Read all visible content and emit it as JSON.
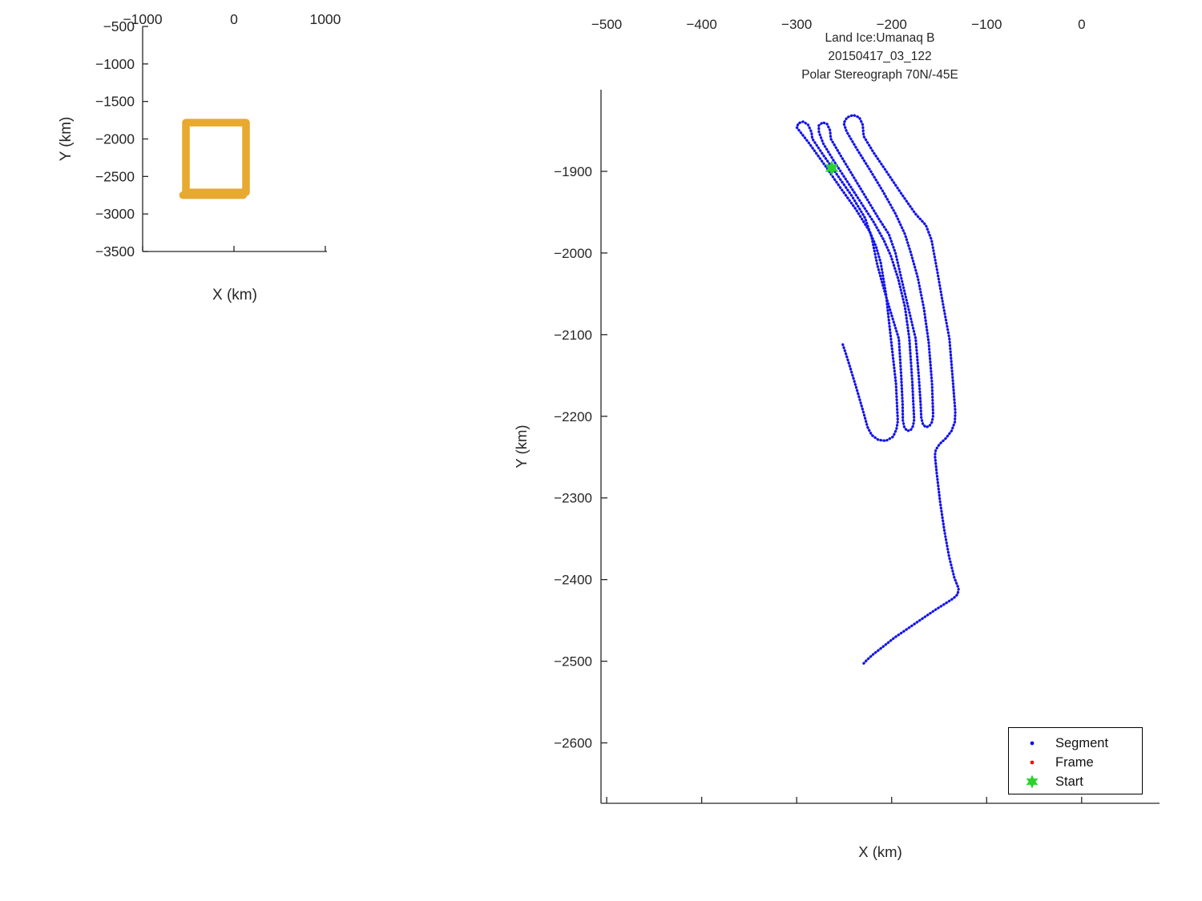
{
  "figure": {
    "background": "#FFFFFF",
    "axis_color": "#262626",
    "title_lines": [
      "Land Ice:Umanaq B",
      "20150417_03_122",
      "Polar Stereograph 70N/-45E"
    ]
  },
  "legend": {
    "position": "bottom-right",
    "items": [
      {
        "label": "Segment",
        "marker": "dot",
        "color": "#1212EE"
      },
      {
        "label": "Frame",
        "marker": "dot",
        "color": "#EE1111"
      },
      {
        "label": "Start",
        "marker": "hexagram",
        "color": "#2BD22B"
      }
    ]
  },
  "chart_data": [
    {
      "id": "overview",
      "type": "line",
      "title": "",
      "xlabel": "X (km)",
      "ylabel": "Y (km)",
      "xlim": [
        -1000,
        1018
      ],
      "ylim": [
        -3500,
        -500
      ],
      "xticks": [
        -1000,
        0,
        1000
      ],
      "yticks": [
        -500,
        -1000,
        -1500,
        -2000,
        -2500,
        -3000,
        -3500
      ],
      "grid": false,
      "series": [
        {
          "name": "coverage-box",
          "color": "#E7A92F",
          "render": "thick",
          "paths": [
            [
              [
                -526,
                -1782
              ],
              [
                132,
                -1782
              ],
              [
                132,
                -2712
              ],
              [
                -526,
                -2712
              ],
              [
                -526,
                -1782
              ]
            ],
            [
              [
                -558,
                -2748
              ],
              [
                100,
                -2748
              ]
            ]
          ]
        }
      ]
    },
    {
      "id": "main",
      "type": "scatter",
      "title_lines": [
        "Land Ice:Umanaq B",
        "20150417_03_122",
        "Polar Stereograph 70N/-45E"
      ],
      "xlabel": "X (km)",
      "ylabel": "Y (km)",
      "xlim": [
        -506,
        82
      ],
      "ylim": [
        -2674,
        -1800
      ],
      "xticks": [
        -500,
        -400,
        -300,
        -200,
        -100,
        0
      ],
      "yticks": [
        -1900,
        -2000,
        -2100,
        -2200,
        -2300,
        -2400,
        -2500,
        -2600
      ],
      "grid": false,
      "series": [
        {
          "name": "Segment",
          "color": "#1212EE",
          "render": "dots",
          "paths": [
            [
              [
                -251.5,
                -2112
              ],
              [
                -248,
                -2124
              ],
              [
                -243,
                -2143
              ],
              [
                -237,
                -2166
              ],
              [
                -231,
                -2190
              ],
              [
                -228,
                -2202
              ],
              [
                -225.5,
                -2213
              ],
              [
                -221,
                -2223
              ],
              [
                -214,
                -2229
              ],
              [
                -206,
                -2230
              ],
              [
                -198.5,
                -2225
              ],
              [
                -195,
                -2216
              ],
              [
                -193.5,
                -2206
              ],
              [
                -195.5,
                -2160
              ],
              [
                -200.8,
                -2105
              ],
              [
                -206,
                -2050
              ],
              [
                -211.5,
                -2012
              ],
              [
                -216.5,
                -1992
              ],
              [
                -223,
                -1974
              ],
              [
                -238,
                -1946
              ],
              [
                -254,
                -1920
              ],
              [
                -270,
                -1893
              ],
              [
                -286,
                -1867
              ],
              [
                -296,
                -1852
              ],
              [
                -300,
                -1846
              ],
              [
                -298,
                -1841
              ],
              [
                -293,
                -1839
              ],
              [
                -288,
                -1843
              ],
              [
                -284.4,
                -1852
              ],
              [
                -283.5,
                -1860
              ],
              [
                -272,
                -1880
              ],
              [
                -257,
                -1905
              ],
              [
                -242,
                -1930
              ],
              [
                -228,
                -1957
              ],
              [
                -221,
                -1981
              ],
              [
                -215,
                -2015
              ],
              [
                -207,
                -2049
              ],
              [
                -198,
                -2084
              ],
              [
                -192.4,
                -2105
              ],
              [
                -190,
                -2150
              ],
              [
                -188.5,
                -2185
              ],
              [
                -188.2,
                -2205
              ],
              [
                -186.5,
                -2214
              ],
              [
                -183.5,
                -2218
              ],
              [
                -180,
                -2217
              ],
              [
                -177.5,
                -2212
              ],
              [
                -176.3,
                -2204
              ],
              [
                -178.2,
                -2160
              ],
              [
                -181.4,
                -2105
              ],
              [
                -186,
                -2066
              ],
              [
                -193,
                -2032
              ],
              [
                -201,
                -2003
              ],
              [
                -208.4,
                -1984
              ],
              [
                -219,
                -1962
              ],
              [
                -233,
                -1937
              ],
              [
                -247,
                -1912
              ],
              [
                -261,
                -1887
              ],
              [
                -272,
                -1866
              ],
              [
                -276.5,
                -1852
              ],
              [
                -276.8,
                -1844
              ],
              [
                -272.6,
                -1840
              ],
              [
                -268,
                -1842
              ],
              [
                -264.8,
                -1850
              ],
              [
                -264.1,
                -1860
              ],
              [
                -253,
                -1882
              ],
              [
                -240,
                -1907
              ],
              [
                -227,
                -1932
              ],
              [
                -214,
                -1957
              ],
              [
                -203,
                -1977
              ],
              [
                -196,
                -2000
              ],
              [
                -189,
                -2035
              ],
              [
                -181.5,
                -2072
              ],
              [
                -174.7,
                -2105
              ],
              [
                -171.5,
                -2150
              ],
              [
                -169.5,
                -2185
              ],
              [
                -168.8,
                -2202
              ],
              [
                -167,
                -2210
              ],
              [
                -163.8,
                -2213.5
              ],
              [
                -160.3,
                -2212
              ],
              [
                -157.5,
                -2207
              ],
              [
                -156.3,
                -2199
              ],
              [
                -157.5,
                -2160
              ],
              [
                -161,
                -2110
              ],
              [
                -166,
                -2068
              ],
              [
                -172.5,
                -2030
              ],
              [
                -180,
                -1999
              ],
              [
                -186,
                -1977
              ],
              [
                -196,
                -1952
              ],
              [
                -209,
                -1925
              ],
              [
                -223,
                -1898
              ],
              [
                -237,
                -1872
              ],
              [
                -247.5,
                -1851
              ],
              [
                -250.5,
                -1841
              ],
              [
                -247,
                -1834
              ],
              [
                -240.5,
                -1831
              ],
              [
                -234,
                -1834
              ],
              [
                -230.5,
                -1843
              ],
              [
                -229.5,
                -1857
              ],
              [
                -219,
                -1877
              ],
              [
                -205,
                -1901
              ],
              [
                -190,
                -1927
              ],
              [
                -175,
                -1952
              ],
              [
                -164,
                -1966
              ],
              [
                -158,
                -1984
              ],
              [
                -152,
                -2022
              ],
              [
                -146,
                -2062
              ],
              [
                -139.2,
                -2105
              ],
              [
                -136,
                -2150
              ],
              [
                -133,
                -2194
              ],
              [
                -133.5,
                -2207
              ],
              [
                -137,
                -2218
              ],
              [
                -143,
                -2227
              ],
              [
                -149.5,
                -2234
              ],
              [
                -153.5,
                -2241
              ],
              [
                -154.5,
                -2248
              ],
              [
                -152.5,
                -2270
              ],
              [
                -149,
                -2305
              ],
              [
                -144.5,
                -2340
              ],
              [
                -139.5,
                -2372
              ],
              [
                -134,
                -2398
              ],
              [
                -129.5,
                -2411
              ],
              [
                -130.5,
                -2418
              ],
              [
                -135,
                -2423
              ],
              [
                -143,
                -2429
              ],
              [
                -154,
                -2437
              ],
              [
                -168,
                -2448
              ],
              [
                -183,
                -2460
              ],
              [
                -197,
                -2471
              ],
              [
                -210,
                -2483
              ],
              [
                -220,
                -2492
              ],
              [
                -226.5,
                -2499
              ],
              [
                -230.5,
                -2504
              ]
            ]
          ]
        },
        {
          "name": "Frame",
          "color": "#EE1111",
          "render": "dots",
          "paths": []
        },
        {
          "name": "Start",
          "color": "#2BD22B",
          "render": "hexagram",
          "points": [
            [
              -263,
              -1896
            ]
          ]
        }
      ]
    }
  ]
}
